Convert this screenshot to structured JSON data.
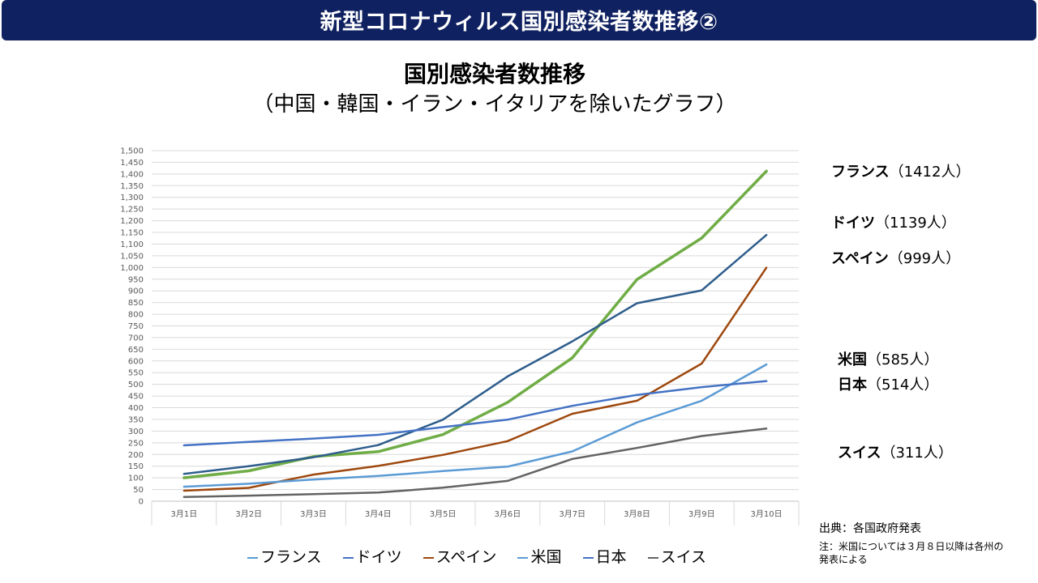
{
  "banner": {
    "title": "新型コロナウィルス国別感染者数推移②"
  },
  "chart_data": {
    "type": "line",
    "title": "国別感染者数推移",
    "subtitle": "（中国・韓国・イラン・イタリアを除いたグラフ）",
    "categories": [
      "3月1日",
      "3月2日",
      "3月3日",
      "3月4日",
      "3月5日",
      "3月6日",
      "3月7日",
      "3月8日",
      "3月9日",
      "3月10日"
    ],
    "ylim": [
      0,
      1500
    ],
    "ytick_step": 50,
    "grid": true,
    "legend_position": "bottom",
    "series": [
      {
        "name": "フランス",
        "color": "#70ad47",
        "values": [
          100,
          130,
          191,
          212,
          285,
          423,
          613,
          949,
          1126,
          1412
        ]
      },
      {
        "name": "ドイツ",
        "color": "#2e5d8c",
        "values": [
          117,
          150,
          188,
          240,
          349,
          534,
          684,
          847,
          902,
          1139
        ]
      },
      {
        "name": "スペイン",
        "color": "#9e480e",
        "values": [
          45,
          57,
          114,
          151,
          198,
          257,
          374,
          430,
          589,
          999
        ]
      },
      {
        "name": "米国",
        "color": "#5b9bd5",
        "values": [
          62,
          75,
          93,
          108,
          129,
          148,
          213,
          337,
          430,
          585
        ]
      },
      {
        "name": "日本",
        "color": "#4472c4",
        "values": [
          239,
          254,
          268,
          284,
          317,
          349,
          408,
          455,
          488,
          514
        ]
      },
      {
        "name": "スイス",
        "color": "#636363",
        "values": [
          18,
          24,
          30,
          37,
          58,
          87,
          181,
          228,
          279,
          311
        ]
      }
    ],
    "annotations": [
      {
        "name": "フランス",
        "value": "（1412人）"
      },
      {
        "name": "ドイツ",
        "value": "（1139人）"
      },
      {
        "name": "スペイン",
        "value": "（999人）"
      },
      {
        "name": "米国",
        "value": "（585人）"
      },
      {
        "name": "日本",
        "value": "（514人）"
      },
      {
        "name": "スイス",
        "value": "（311人）"
      }
    ]
  },
  "source": "出典：各国政府発表",
  "note": "注：米国については３月８日以降は各州の発表による"
}
